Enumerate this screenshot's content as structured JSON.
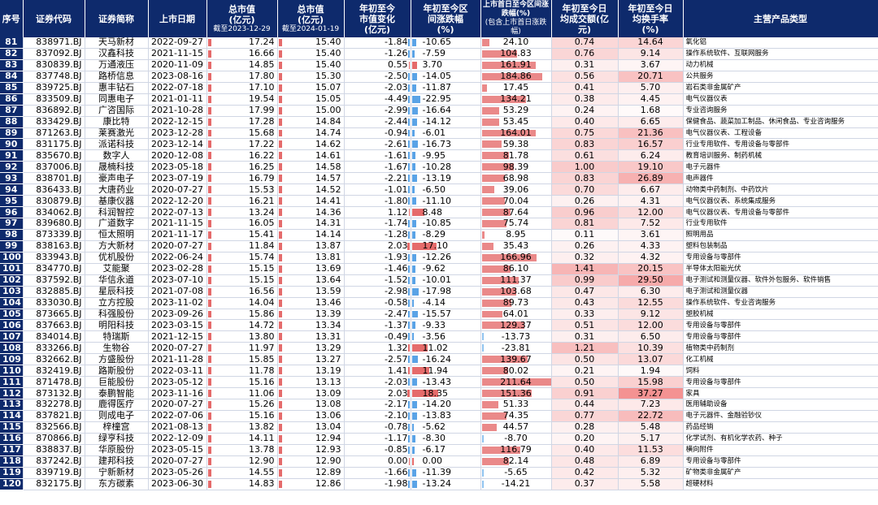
{
  "headers": {
    "seq": "序号",
    "code": "证券代码",
    "name": "证券简称",
    "list_date": "上市日期",
    "mcap_2023": "总市值\n(亿元)",
    "mcap_2023_sub": "截至2023-12-29",
    "mcap_2024": "总市值\n(亿元)",
    "mcap_2024_sub": "截至2024-01-19",
    "ytd_chg": "年初至今\n市值变化\n(亿元)",
    "ytd_range": "年初至今区\n间涨跌幅\n(%)",
    "ipo_range": "上市首日至今区间涨跌幅(%)",
    "ipo_range_sub": "(包含上市首日涨跌幅)",
    "avg_turnover": "年初至今日\n均成交额(亿\n元)",
    "avg_rate": "年初至今日\n均换手率\n(%)",
    "products": "主营产品类型"
  },
  "colors": {
    "header_bg": "#0e2a6c",
    "positive_bar": "#e56b6b",
    "negative_bar": "#5aa3e6",
    "heat_high": "#f08080"
  },
  "rows": [
    {
      "seq": "81",
      "code": "838971.BJ",
      "name": "天马新材",
      "date": "2022-09-27",
      "m1": "17.24",
      "m2": "15.40",
      "chg": "-1.84",
      "r1": "-10.65",
      "r2": "24.10",
      "t": "0.74",
      "h": "14.64",
      "p": "氧化铝"
    },
    {
      "seq": "82",
      "code": "837092.BJ",
      "name": "汉鑫科技",
      "date": "2021-11-15",
      "m1": "16.66",
      "m2": "15.40",
      "chg": "-1.26",
      "r1": "-7.59",
      "r2": "104.83",
      "t": "0.76",
      "h": "9.14",
      "p": "操作系统软件、互联网服务"
    },
    {
      "seq": "83",
      "code": "830839.BJ",
      "name": "万通液压",
      "date": "2020-11-09",
      "m1": "14.85",
      "m2": "15.40",
      "chg": "0.55",
      "r1": "3.70",
      "r2": "161.91",
      "t": "0.31",
      "h": "3.67",
      "p": "动力机械"
    },
    {
      "seq": "84",
      "code": "837748.BJ",
      "name": "路桥信息",
      "date": "2023-08-16",
      "m1": "17.80",
      "m2": "15.30",
      "chg": "-2.50",
      "r1": "-14.05",
      "r2": "184.86",
      "t": "0.56",
      "h": "20.71",
      "p": "公共服务"
    },
    {
      "seq": "85",
      "code": "839725.BJ",
      "name": "惠丰钻石",
      "date": "2022-07-18",
      "m1": "17.10",
      "m2": "15.07",
      "chg": "-2.03",
      "r1": "-11.87",
      "r2": "17.45",
      "t": "0.41",
      "h": "5.70",
      "p": "岩石类非金属矿产"
    },
    {
      "seq": "86",
      "code": "833509.BJ",
      "name": "同惠电子",
      "date": "2021-01-11",
      "m1": "19.54",
      "m2": "15.05",
      "chg": "-4.49",
      "r1": "-22.95",
      "r2": "134.21",
      "t": "0.38",
      "h": "4.45",
      "p": "电气仪器仪表"
    },
    {
      "seq": "87",
      "code": "836892.BJ",
      "name": "广咨国际",
      "date": "2021-10-28",
      "m1": "17.99",
      "m2": "15.00",
      "chg": "-2.99",
      "r1": "-16.64",
      "r2": "53.29",
      "t": "0.24",
      "h": "1.68",
      "p": "专业咨询服务"
    },
    {
      "seq": "88",
      "code": "833429.BJ",
      "name": "康比特",
      "date": "2022-12-15",
      "m1": "17.28",
      "m2": "14.84",
      "chg": "-2.44",
      "r1": "-14.12",
      "r2": "53.45",
      "t": "0.40",
      "h": "6.65",
      "p": "保健食品、蔬菜加工制品、休闲食品、专业咨询服务"
    },
    {
      "seq": "89",
      "code": "871263.BJ",
      "name": "莱赛激光",
      "date": "2023-12-28",
      "m1": "15.68",
      "m2": "14.74",
      "chg": "-0.94",
      "r1": "-6.01",
      "r2": "164.01",
      "t": "0.75",
      "h": "21.36",
      "p": "电气仪器仪表、工程设备"
    },
    {
      "seq": "90",
      "code": "831175.BJ",
      "name": "派诺科技",
      "date": "2023-12-14",
      "m1": "17.22",
      "m2": "14.62",
      "chg": "-2.61",
      "r1": "-16.73",
      "r2": "59.38",
      "t": "0.83",
      "h": "16.57",
      "p": "行业专用软件、专用设备与零部件"
    },
    {
      "seq": "91",
      "code": "835670.BJ",
      "name": "数字人",
      "date": "2020-12-08",
      "m1": "16.22",
      "m2": "14.61",
      "chg": "-1.61",
      "r1": "-9.95",
      "r2": "81.78",
      "t": "0.61",
      "h": "6.24",
      "p": "教育培训服务、制药机械"
    },
    {
      "seq": "92",
      "code": "837006.BJ",
      "name": "晟楠科技",
      "date": "2023-05-18",
      "m1": "16.25",
      "m2": "14.58",
      "chg": "-1.67",
      "r1": "-10.28",
      "r2": "98.39",
      "t": "1.00",
      "h": "19.10",
      "p": "电子元器件"
    },
    {
      "seq": "93",
      "code": "838701.BJ",
      "name": "豪声电子",
      "date": "2023-07-19",
      "m1": "16.79",
      "m2": "14.57",
      "chg": "-2.21",
      "r1": "-13.19",
      "r2": "68.98",
      "t": "0.83",
      "h": "26.89",
      "p": "电声器件"
    },
    {
      "seq": "94",
      "code": "836433.BJ",
      "name": "大唐药业",
      "date": "2020-07-27",
      "m1": "15.53",
      "m2": "14.52",
      "chg": "-1.01",
      "r1": "-6.50",
      "r2": "39.06",
      "t": "0.70",
      "h": "6.67",
      "p": "动物类中药制剂、中药饮片"
    },
    {
      "seq": "95",
      "code": "830879.BJ",
      "name": "基康仪器",
      "date": "2022-12-20",
      "m1": "16.21",
      "m2": "14.41",
      "chg": "-1.80",
      "r1": "-11.10",
      "r2": "70.04",
      "t": "0.26",
      "h": "4.31",
      "p": "电气仪器仪表、系统集成服务"
    },
    {
      "seq": "96",
      "code": "834062.BJ",
      "name": "科润智控",
      "date": "2022-07-13",
      "m1": "13.24",
      "m2": "14.36",
      "chg": "1.12",
      "r1": "8.48",
      "r2": "87.64",
      "t": "0.96",
      "h": "12.00",
      "p": "电气仪器仪表、专用设备与零部件"
    },
    {
      "seq": "97",
      "code": "839680.BJ",
      "name": "广道数字",
      "date": "2021-11-15",
      "m1": "16.05",
      "m2": "14.31",
      "chg": "-1.74",
      "r1": "-10.85",
      "r2": "75.74",
      "t": "0.81",
      "h": "7.52",
      "p": "行业专用软件"
    },
    {
      "seq": "98",
      "code": "873339.BJ",
      "name": "恒太照明",
      "date": "2021-11-17",
      "m1": "15.41",
      "m2": "14.14",
      "chg": "-1.28",
      "r1": "-8.29",
      "r2": "8.95",
      "t": "0.11",
      "h": "3.61",
      "p": "照明用品"
    },
    {
      "seq": "99",
      "code": "838163.BJ",
      "name": "方大新材",
      "date": "2020-07-27",
      "m1": "11.84",
      "m2": "13.87",
      "chg": "2.03",
      "r1": "17.10",
      "r2": "35.43",
      "t": "0.26",
      "h": "4.33",
      "p": "塑料包装制品"
    },
    {
      "seq": "100",
      "code": "833943.BJ",
      "name": "优机股份",
      "date": "2022-06-24",
      "m1": "15.74",
      "m2": "13.81",
      "chg": "-1.93",
      "r1": "-12.26",
      "r2": "166.96",
      "t": "0.32",
      "h": "4.32",
      "p": "专用设备与零部件"
    },
    {
      "seq": "101",
      "code": "834770.BJ",
      "name": "艾能聚",
      "date": "2023-02-28",
      "m1": "15.15",
      "m2": "13.69",
      "chg": "-1.46",
      "r1": "-9.62",
      "r2": "86.10",
      "t": "1.41",
      "h": "20.15",
      "p": "半导体太阳能光伏"
    },
    {
      "seq": "102",
      "code": "837592.BJ",
      "name": "华信永道",
      "date": "2023-07-10",
      "m1": "15.15",
      "m2": "13.64",
      "chg": "-1.52",
      "r1": "-10.01",
      "r2": "111.37",
      "t": "0.99",
      "h": "29.50",
      "p": "电子测试和测量仪器、软件外包服务、软件销售"
    },
    {
      "seq": "103",
      "code": "832885.BJ",
      "name": "星辰科技",
      "date": "2021-07-08",
      "m1": "16.56",
      "m2": "13.59",
      "chg": "-2.98",
      "r1": "-17.98",
      "r2": "103.68",
      "t": "0.47",
      "h": "6.30",
      "p": "电子测试和测量仪器"
    },
    {
      "seq": "104",
      "code": "833030.BJ",
      "name": "立方控股",
      "date": "2023-11-02",
      "m1": "14.04",
      "m2": "13.46",
      "chg": "-0.58",
      "r1": "-4.14",
      "r2": "89.73",
      "t": "0.43",
      "h": "12.55",
      "p": "操作系统软件、专业咨询服务"
    },
    {
      "seq": "105",
      "code": "873665.BJ",
      "name": "科强股份",
      "date": "2023-09-26",
      "m1": "15.86",
      "m2": "13.39",
      "chg": "-2.47",
      "r1": "-15.57",
      "r2": "64.01",
      "t": "0.33",
      "h": "9.12",
      "p": "塑胶机械"
    },
    {
      "seq": "106",
      "code": "837663.BJ",
      "name": "明阳科技",
      "date": "2023-03-15",
      "m1": "14.72",
      "m2": "13.34",
      "chg": "-1.37",
      "r1": "-9.33",
      "r2": "129.37",
      "t": "0.51",
      "h": "12.00",
      "p": "专用设备与零部件"
    },
    {
      "seq": "107",
      "code": "834014.BJ",
      "name": "特瑞斯",
      "date": "2021-12-15",
      "m1": "13.80",
      "m2": "13.31",
      "chg": "-0.49",
      "r1": "-3.56",
      "r2": "-13.73",
      "t": "0.31",
      "h": "6.50",
      "p": "专用设备与零部件"
    },
    {
      "seq": "108",
      "code": "833266.BJ",
      "name": "生物谷",
      "date": "2020-07-27",
      "m1": "11.97",
      "m2": "13.29",
      "chg": "1.32",
      "r1": "11.02",
      "r2": "-23.81",
      "t": "1.21",
      "h": "10.39",
      "p": "植物类中药制剂"
    },
    {
      "seq": "109",
      "code": "832662.BJ",
      "name": "方盛股份",
      "date": "2021-11-28",
      "m1": "15.85",
      "m2": "13.27",
      "chg": "-2.57",
      "r1": "-16.24",
      "r2": "139.67",
      "t": "0.50",
      "h": "13.07",
      "p": "化工机械"
    },
    {
      "seq": "110",
      "code": "832419.BJ",
      "name": "路斯股份",
      "date": "2022-03-11",
      "m1": "11.78",
      "m2": "13.19",
      "chg": "1.41",
      "r1": "11.94",
      "r2": "80.02",
      "t": "0.21",
      "h": "1.94",
      "p": "饲料"
    },
    {
      "seq": "111",
      "code": "871478.BJ",
      "name": "巨能股份",
      "date": "2023-05-12",
      "m1": "15.16",
      "m2": "13.13",
      "chg": "-2.03",
      "r1": "-13.43",
      "r2": "211.64",
      "t": "0.50",
      "h": "15.98",
      "p": "专用设备与零部件"
    },
    {
      "seq": "112",
      "code": "873132.BJ",
      "name": "泰鹏智能",
      "date": "2023-11-16",
      "m1": "11.06",
      "m2": "13.09",
      "chg": "2.03",
      "r1": "18.35",
      "r2": "151.36",
      "t": "0.91",
      "h": "37.27",
      "p": "家具"
    },
    {
      "seq": "113",
      "code": "832278.BJ",
      "name": "鹿得医疗",
      "date": "2020-07-27",
      "m1": "15.26",
      "m2": "13.08",
      "chg": "-2.17",
      "r1": "-14.20",
      "r2": "51.33",
      "t": "0.44",
      "h": "7.23",
      "p": "医用辅助设备"
    },
    {
      "seq": "114",
      "code": "837821.BJ",
      "name": "则成电子",
      "date": "2022-07-06",
      "m1": "15.16",
      "m2": "13.06",
      "chg": "-2.10",
      "r1": "-13.83",
      "r2": "74.35",
      "t": "0.77",
      "h": "22.72",
      "p": "电子元器件、金融验钞仪"
    },
    {
      "seq": "115",
      "code": "832566.BJ",
      "name": "梓橦宫",
      "date": "2021-08-13",
      "m1": "13.82",
      "m2": "13.04",
      "chg": "-0.78",
      "r1": "-5.62",
      "r2": "44.57",
      "t": "0.28",
      "h": "5.48",
      "p": "药品经销"
    },
    {
      "seq": "116",
      "code": "870866.BJ",
      "name": "绿亨科技",
      "date": "2022-12-09",
      "m1": "14.11",
      "m2": "12.94",
      "chg": "-1.17",
      "r1": "-8.30",
      "r2": "-8.70",
      "t": "0.20",
      "h": "5.17",
      "p": "化学试剂、有机化学农药、种子"
    },
    {
      "seq": "117",
      "code": "838837.BJ",
      "name": "华原股份",
      "date": "2023-05-15",
      "m1": "13.78",
      "m2": "12.93",
      "chg": "-0.85",
      "r1": "-6.17",
      "r2": "116.79",
      "t": "0.40",
      "h": "11.53",
      "p": "横向附件"
    },
    {
      "seq": "118",
      "code": "837242.BJ",
      "name": "建邦科技",
      "date": "2020-07-27",
      "m1": "12.90",
      "m2": "12.90",
      "chg": "0.00",
      "r1": "0.00",
      "r2": "82.14",
      "t": "0.48",
      "h": "6.89",
      "p": "专用设备与零部件"
    },
    {
      "seq": "119",
      "code": "839719.BJ",
      "name": "宁新新材",
      "date": "2023-05-26",
      "m1": "14.55",
      "m2": "12.89",
      "chg": "-1.66",
      "r1": "-11.39",
      "r2": "-5.65",
      "t": "0.42",
      "h": "5.32",
      "p": "矿物类非金属矿产"
    },
    {
      "seq": "120",
      "code": "832175.BJ",
      "name": "东方碳素",
      "date": "2023-06-30",
      "m1": "14.83",
      "m2": "12.86",
      "chg": "-1.98",
      "r1": "-13.24",
      "r2": "-14.21",
      "t": "0.37",
      "h": "5.58",
      "p": "超硬材料"
    }
  ]
}
